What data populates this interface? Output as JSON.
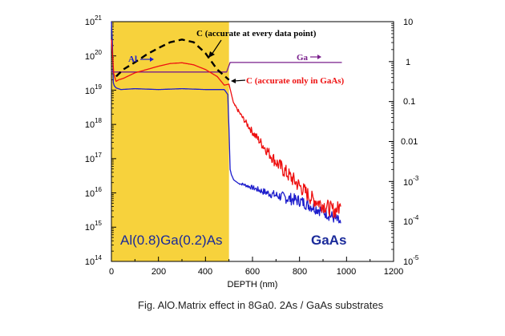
{
  "caption": "Fig. AlO.Matrix effect in 8Ga0. 2As / GaAs substrates",
  "colors": {
    "yellow_region": "#f7d23c",
    "al": "#1d1dcc",
    "ga": "#7a1f8c",
    "c_red": "#ee1111",
    "c_dashed": "#000000",
    "frame": "#000000"
  },
  "chart_data": {
    "type": "line",
    "xlabel": "DEPTH (nm)",
    "xlim": [
      0,
      1200
    ],
    "x_ticks": [
      "0",
      "200",
      "400",
      "600",
      "800",
      "1000",
      "1200"
    ],
    "y_left_scale": "log",
    "ylim_left": [
      100000000000000.0,
      1e+21
    ],
    "y_left_ticks": [
      {
        "base": "10",
        "exp": "21"
      },
      {
        "base": "10",
        "exp": "20"
      },
      {
        "base": "10",
        "exp": "19"
      },
      {
        "base": "10",
        "exp": "18"
      },
      {
        "base": "10",
        "exp": "17"
      },
      {
        "base": "10",
        "exp": "16"
      },
      {
        "base": "10",
        "exp": "15"
      },
      {
        "base": "10",
        "exp": "14"
      }
    ],
    "y_right_scale": "log",
    "ylim_right": [
      1e-05,
      10
    ],
    "y_right_ticks": [
      {
        "base": "10",
        "exp": ""
      },
      {
        "base": "1",
        "exp": ""
      },
      {
        "base": "0.1",
        "exp": ""
      },
      {
        "base": "0.01",
        "exp": ""
      },
      {
        "base": "10",
        "exp": "-3"
      },
      {
        "base": "10",
        "exp": "-4"
      },
      {
        "base": "10",
        "exp": "-5"
      }
    ],
    "regions": [
      {
        "label": "Al(0.8)Ga(0.2)As",
        "x_start": 0,
        "x_end": 500,
        "color": "#f7d23c"
      },
      {
        "label": "GaAs",
        "x_start": 500,
        "x_end": 1200
      }
    ],
    "annotations": [
      {
        "text": "Al",
        "series": "Al"
      },
      {
        "text": "Ga",
        "series": "Ga"
      },
      {
        "text": "C (accurate at   every data point)",
        "series": "C dashed"
      },
      {
        "text": "C (accurate only in   GaAs)",
        "series": "C red"
      }
    ],
    "series": [
      {
        "name": "Al",
        "axis": "right",
        "color": "#1d1dcc",
        "x": [
          0,
          4,
          8,
          12,
          20,
          40,
          100,
          200,
          300,
          400,
          480,
          495,
          500,
          505,
          510,
          520,
          540,
          560,
          600,
          650,
          700,
          750,
          800,
          850,
          900,
          950,
          975
        ],
        "y": [
          10,
          3,
          0.3,
          0.25,
          0.22,
          0.2,
          0.21,
          0.2,
          0.21,
          0.2,
          0.2,
          0.15,
          0.02,
          0.002,
          0.0015,
          0.0011,
          0.0009,
          0.00085,
          0.0007,
          0.00055,
          0.00045,
          0.00038,
          0.00033,
          0.00024,
          0.00018,
          0.00012,
          9e-05
        ]
      },
      {
        "name": "Ga",
        "axis": "right",
        "color": "#7a1f8c",
        "x": [
          0,
          5,
          20,
          100,
          200,
          300,
          400,
          490,
          505,
          600,
          700,
          800,
          900,
          980
        ],
        "y": [
          0.6,
          0.55,
          0.55,
          0.55,
          0.55,
          0.55,
          0.55,
          0.55,
          0.95,
          0.95,
          0.95,
          0.95,
          0.95,
          0.95
        ]
      },
      {
        "name": "C red",
        "axis": "left",
        "color": "#ee1111",
        "x": [
          0,
          5,
          10,
          20,
          30,
          50,
          100,
          150,
          200,
          250,
          300,
          350,
          400,
          450,
          480,
          500,
          520,
          560,
          600,
          650,
          700,
          750,
          800,
          850,
          900,
          950,
          975
        ],
        "y": [
          3e+20,
          1e+20,
          3e+19,
          1.8e+19,
          2e+19,
          2.2e+19,
          3.2e+19,
          4e+19,
          5e+19,
          6e+19,
          6.3e+19,
          5.5e+19,
          4e+19,
          2.5e+19,
          1.4e+19,
          1.5e+19,
          4e+18,
          1.5e+18,
          6e+17,
          2.2e+17,
          8e+16,
          3.5e+16,
          1.6e+16,
          7000000000000000.0,
          4500000000000000.0,
          3000000000000000.0,
          4000000000000000.0
        ]
      },
      {
        "name": "C dashed",
        "axis": "left",
        "color": "#000000",
        "x": [
          20,
          50,
          100,
          150,
          200,
          250,
          300,
          350,
          400,
          450,
          500
        ],
        "y": [
          2.5e+19,
          4e+19,
          6.5e+19,
          1.1e+20,
          1.7e+20,
          2.5e+20,
          3e+20,
          2.5e+20,
          1.2e+20,
          4e+19,
          2e+19
        ]
      }
    ]
  }
}
